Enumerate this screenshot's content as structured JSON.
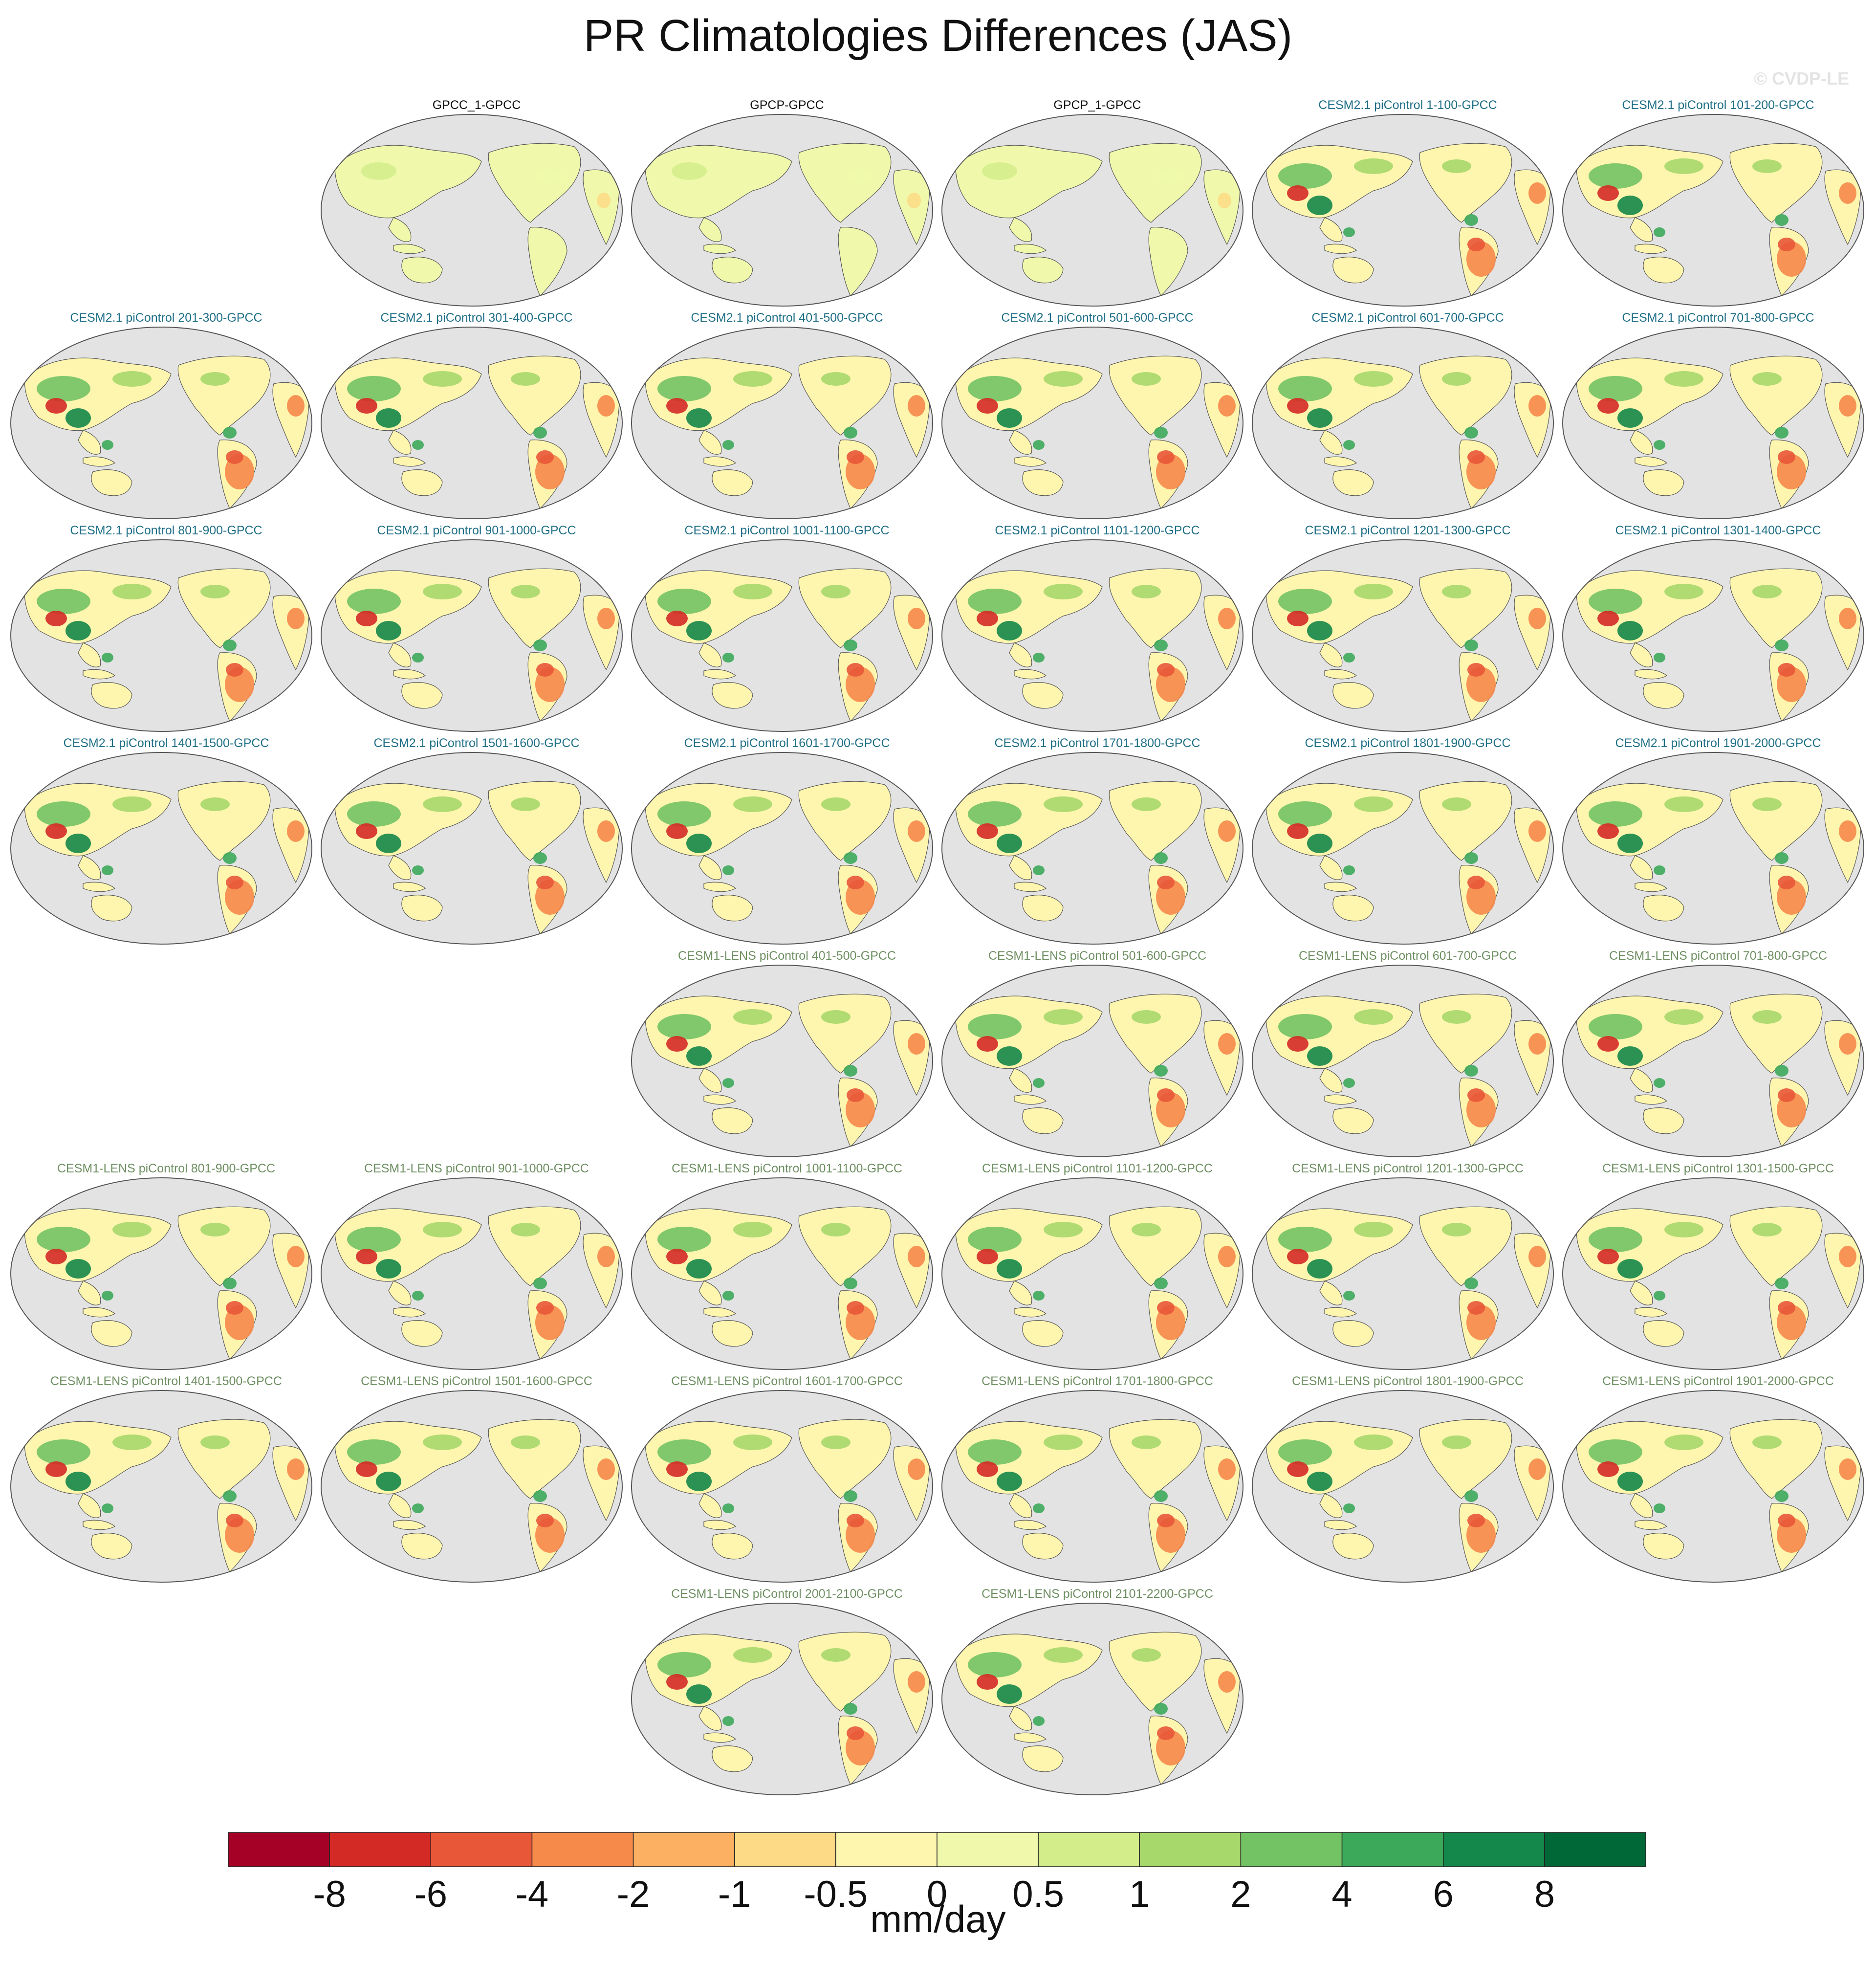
{
  "title": "PR Climatologies Differences (JAS)",
  "watermark": "© CVDP-LE",
  "colors": {
    "ocean": "#e3e3e3",
    "coast": "#555555",
    "obs_title": "#111111",
    "cesm2_title": "#1f6f87",
    "lens_title": "#6e8f62"
  },
  "chart_data": {
    "type": "heatmap",
    "projection": "Robinson, centered on Pacific",
    "units": "mm/day",
    "legend_placement": "bottom",
    "colorbar": {
      "labels": [
        "-8",
        "-6",
        "-4",
        "-2",
        "-1",
        "-0.5",
        "0",
        "0.5",
        "1",
        "2",
        "4",
        "6",
        "8"
      ],
      "levels": [
        -8,
        -6,
        -4,
        -2,
        -1,
        -0.5,
        0,
        0.5,
        1,
        2,
        4,
        6,
        8
      ],
      "colors": [
        "#a50026",
        "#d42a26",
        "#e85738",
        "#f68a4b",
        "#fcb062",
        "#fddb86",
        "#fef5ae",
        "#f0f9ab",
        "#d4ed8b",
        "#a7d86b",
        "#73c365",
        "#3ca85a",
        "#14874a",
        "#006837"
      ]
    },
    "panels": [
      {
        "title": "GPCC_1-GPCC",
        "group": "obs",
        "row": 0,
        "col": 1
      },
      {
        "title": "GPCP-GPCC",
        "group": "obs",
        "row": 0,
        "col": 2
      },
      {
        "title": "GPCP_1-GPCC",
        "group": "obs",
        "row": 0,
        "col": 3
      },
      {
        "title": "CESM2.1 piControl 1-100-GPCC",
        "group": "cesm2",
        "row": 0,
        "col": 4
      },
      {
        "title": "CESM2.1 piControl 101-200-GPCC",
        "group": "cesm2",
        "row": 0,
        "col": 5
      },
      {
        "title": "CESM2.1 piControl 201-300-GPCC",
        "group": "cesm2",
        "row": 1,
        "col": 0
      },
      {
        "title": "CESM2.1 piControl 301-400-GPCC",
        "group": "cesm2",
        "row": 1,
        "col": 1
      },
      {
        "title": "CESM2.1 piControl 401-500-GPCC",
        "group": "cesm2",
        "row": 1,
        "col": 2
      },
      {
        "title": "CESM2.1 piControl 501-600-GPCC",
        "group": "cesm2",
        "row": 1,
        "col": 3
      },
      {
        "title": "CESM2.1 piControl 601-700-GPCC",
        "group": "cesm2",
        "row": 1,
        "col": 4
      },
      {
        "title": "CESM2.1 piControl 701-800-GPCC",
        "group": "cesm2",
        "row": 1,
        "col": 5
      },
      {
        "title": "CESM2.1 piControl 801-900-GPCC",
        "group": "cesm2",
        "row": 2,
        "col": 0
      },
      {
        "title": "CESM2.1 piControl 901-1000-GPCC",
        "group": "cesm2",
        "row": 2,
        "col": 1
      },
      {
        "title": "CESM2.1 piControl 1001-1100-GPCC",
        "group": "cesm2",
        "row": 2,
        "col": 2
      },
      {
        "title": "CESM2.1 piControl 1101-1200-GPCC",
        "group": "cesm2",
        "row": 2,
        "col": 3
      },
      {
        "title": "CESM2.1 piControl 1201-1300-GPCC",
        "group": "cesm2",
        "row": 2,
        "col": 4
      },
      {
        "title": "CESM2.1 piControl 1301-1400-GPCC",
        "group": "cesm2",
        "row": 2,
        "col": 5
      },
      {
        "title": "CESM2.1 piControl 1401-1500-GPCC",
        "group": "cesm2",
        "row": 3,
        "col": 0
      },
      {
        "title": "CESM2.1 piControl 1501-1600-GPCC",
        "group": "cesm2",
        "row": 3,
        "col": 1
      },
      {
        "title": "CESM2.1 piControl 1601-1700-GPCC",
        "group": "cesm2",
        "row": 3,
        "col": 2
      },
      {
        "title": "CESM2.1 piControl 1701-1800-GPCC",
        "group": "cesm2",
        "row": 3,
        "col": 3
      },
      {
        "title": "CESM2.1 piControl 1801-1900-GPCC",
        "group": "cesm2",
        "row": 3,
        "col": 4
      },
      {
        "title": "CESM2.1 piControl 1901-2000-GPCC",
        "group": "cesm2",
        "row": 3,
        "col": 5
      },
      {
        "title": "CESM1-LENS piControl 401-500-GPCC",
        "group": "lens",
        "row": 4,
        "col": 2
      },
      {
        "title": "CESM1-LENS piControl 501-600-GPCC",
        "group": "lens",
        "row": 4,
        "col": 3
      },
      {
        "title": "CESM1-LENS piControl 601-700-GPCC",
        "group": "lens",
        "row": 4,
        "col": 4
      },
      {
        "title": "CESM1-LENS piControl 701-800-GPCC",
        "group": "lens",
        "row": 4,
        "col": 5
      },
      {
        "title": "CESM1-LENS piControl 801-900-GPCC",
        "group": "lens",
        "row": 5,
        "col": 0
      },
      {
        "title": "CESM1-LENS piControl 901-1000-GPCC",
        "group": "lens",
        "row": 5,
        "col": 1
      },
      {
        "title": "CESM1-LENS piControl 1001-1100-GPCC",
        "group": "lens",
        "row": 5,
        "col": 2
      },
      {
        "title": "CESM1-LENS piControl 1101-1200-GPCC",
        "group": "lens",
        "row": 5,
        "col": 3
      },
      {
        "title": "CESM1-LENS piControl 1201-1300-GPCC",
        "group": "lens",
        "row": 5,
        "col": 4
      },
      {
        "title": "CESM1-LENS piControl 1301-1500-GPCC",
        "group": "lens",
        "row": 5,
        "col": 5
      },
      {
        "title": "CESM1-LENS piControl 1401-1500-GPCC",
        "group": "lens",
        "row": 6,
        "col": 0
      },
      {
        "title": "CESM1-LENS piControl 1501-1600-GPCC",
        "group": "lens",
        "row": 6,
        "col": 1
      },
      {
        "title": "CESM1-LENS piControl 1601-1700-GPCC",
        "group": "lens",
        "row": 6,
        "col": 2
      },
      {
        "title": "CESM1-LENS piControl 1701-1800-GPCC",
        "group": "lens",
        "row": 6,
        "col": 3
      },
      {
        "title": "CESM1-LENS piControl 1801-1900-GPCC",
        "group": "lens",
        "row": 6,
        "col": 4
      },
      {
        "title": "CESM1-LENS piControl 1901-2000-GPCC",
        "group": "lens",
        "row": 6,
        "col": 5
      },
      {
        "title": "CESM1-LENS piControl 2001-2100-GPCC",
        "group": "lens",
        "row": 7,
        "col": 2
      },
      {
        "title": "CESM1-LENS piControl 2101-2200-GPCC",
        "group": "lens",
        "row": 7,
        "col": 3
      }
    ]
  }
}
